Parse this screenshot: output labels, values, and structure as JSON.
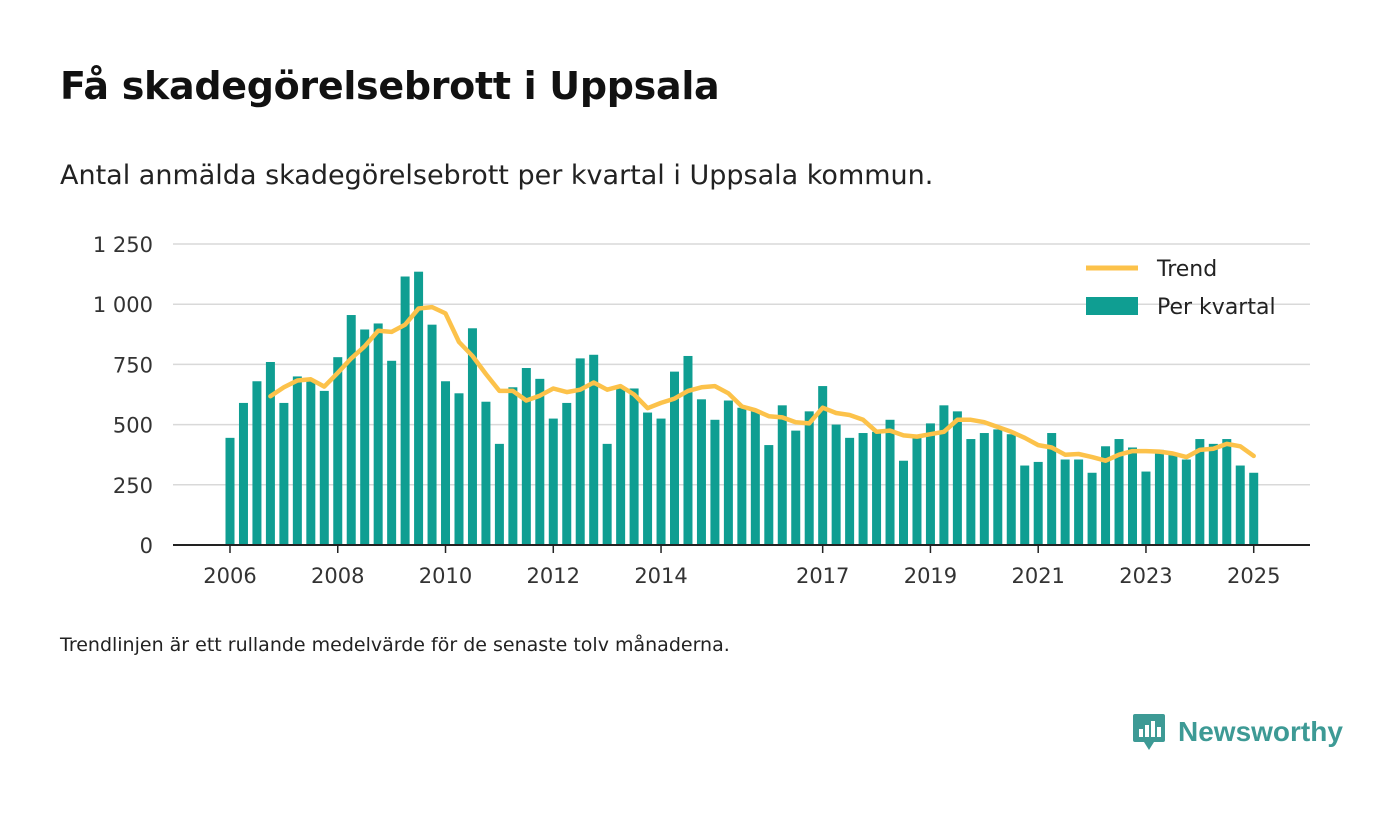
{
  "title": "Få skadegörelsebrott i Uppsala",
  "subtitle": "Antal anmälda skadegörelsebrott per kvartal i Uppsala kommun.",
  "footnote": "Trendlinjen är ett rullande medelvärde för de senaste tolv månaderna.",
  "brand": {
    "name": "Newsworthy",
    "icon": "newsworthy-logo-icon"
  },
  "colors": {
    "bars": "#0f9e92",
    "trend": "#fcc24a",
    "grid": "#d9d9d9",
    "axis": "#222222",
    "brand": "#3d9a95"
  },
  "chart_data": {
    "type": "bar",
    "title": "",
    "xlabel": "",
    "ylabel": "",
    "ylim": [
      0,
      1250
    ],
    "yticks": [
      0,
      250,
      500,
      750,
      1000,
      1250
    ],
    "ytick_labels": [
      "0",
      "250",
      "500",
      "750",
      "1 000",
      "1 250"
    ],
    "xticks": [
      "2006",
      "2008",
      "2010",
      "2012",
      "2014",
      "2017",
      "2019",
      "2021",
      "2023",
      "2025"
    ],
    "grid": true,
    "legend_position": "top-right",
    "categories": [
      "2006Q1",
      "2006Q2",
      "2006Q3",
      "2006Q4",
      "2007Q1",
      "2007Q2",
      "2007Q3",
      "2007Q4",
      "2008Q1",
      "2008Q2",
      "2008Q3",
      "2008Q4",
      "2009Q1",
      "2009Q2",
      "2009Q3",
      "2009Q4",
      "2010Q1",
      "2010Q2",
      "2010Q3",
      "2010Q4",
      "2011Q1",
      "2011Q2",
      "2011Q3",
      "2011Q4",
      "2012Q1",
      "2012Q2",
      "2012Q3",
      "2012Q4",
      "2013Q1",
      "2013Q2",
      "2013Q3",
      "2013Q4",
      "2014Q1",
      "2014Q2",
      "2014Q3",
      "2014Q4",
      "2015Q1",
      "2015Q2",
      "2015Q3",
      "2015Q4",
      "2016Q1",
      "2016Q2",
      "2016Q3",
      "2016Q4",
      "2017Q1",
      "2017Q2",
      "2017Q3",
      "2017Q4",
      "2018Q1",
      "2018Q2",
      "2018Q3",
      "2018Q4",
      "2019Q1",
      "2019Q2",
      "2019Q3",
      "2019Q4",
      "2020Q1",
      "2020Q2",
      "2020Q3",
      "2020Q4",
      "2021Q1",
      "2021Q2",
      "2021Q3",
      "2021Q4",
      "2022Q1",
      "2022Q2",
      "2022Q3",
      "2022Q4",
      "2023Q1",
      "2023Q2",
      "2023Q3",
      "2023Q4",
      "2024Q1",
      "2024Q2",
      "2024Q3",
      "2024Q4",
      "2025Q1"
    ],
    "series": [
      {
        "name": "Per kvartal",
        "type": "bar",
        "values": [
          445,
          590,
          680,
          760,
          590,
          700,
          680,
          640,
          780,
          955,
          895,
          920,
          765,
          1115,
          1135,
          915,
          680,
          630,
          900,
          595,
          420,
          655,
          735,
          690,
          525,
          590,
          775,
          790,
          420,
          650,
          650,
          550,
          525,
          720,
          785,
          605,
          520,
          600,
          570,
          560,
          415,
          580,
          475,
          555,
          660,
          500,
          445,
          465,
          470,
          520,
          350,
          450,
          505,
          580,
          555,
          440,
          465,
          480,
          460,
          330,
          345,
          465,
          355,
          355,
          300,
          410,
          440,
          405,
          305,
          395,
          375,
          355,
          440,
          420,
          440,
          330,
          300
        ]
      },
      {
        "name": "Trend",
        "type": "line",
        "values": [
          null,
          null,
          null,
          618,
          655,
          683,
          688,
          658,
          715,
          775,
          825,
          890,
          885,
          915,
          982,
          988,
          962,
          843,
          785,
          710,
          640,
          640,
          600,
          620,
          650,
          635,
          645,
          675,
          645,
          660,
          625,
          568,
          590,
          608,
          640,
          655,
          660,
          630,
          575,
          560,
          535,
          530,
          510,
          505,
          570,
          548,
          540,
          520,
          470,
          475,
          455,
          450,
          460,
          470,
          520,
          520,
          510,
          490,
          470,
          445,
          415,
          405,
          375,
          378,
          365,
          350,
          375,
          390,
          390,
          388,
          380,
          365,
          395,
          400,
          420,
          410,
          370
        ]
      }
    ]
  }
}
